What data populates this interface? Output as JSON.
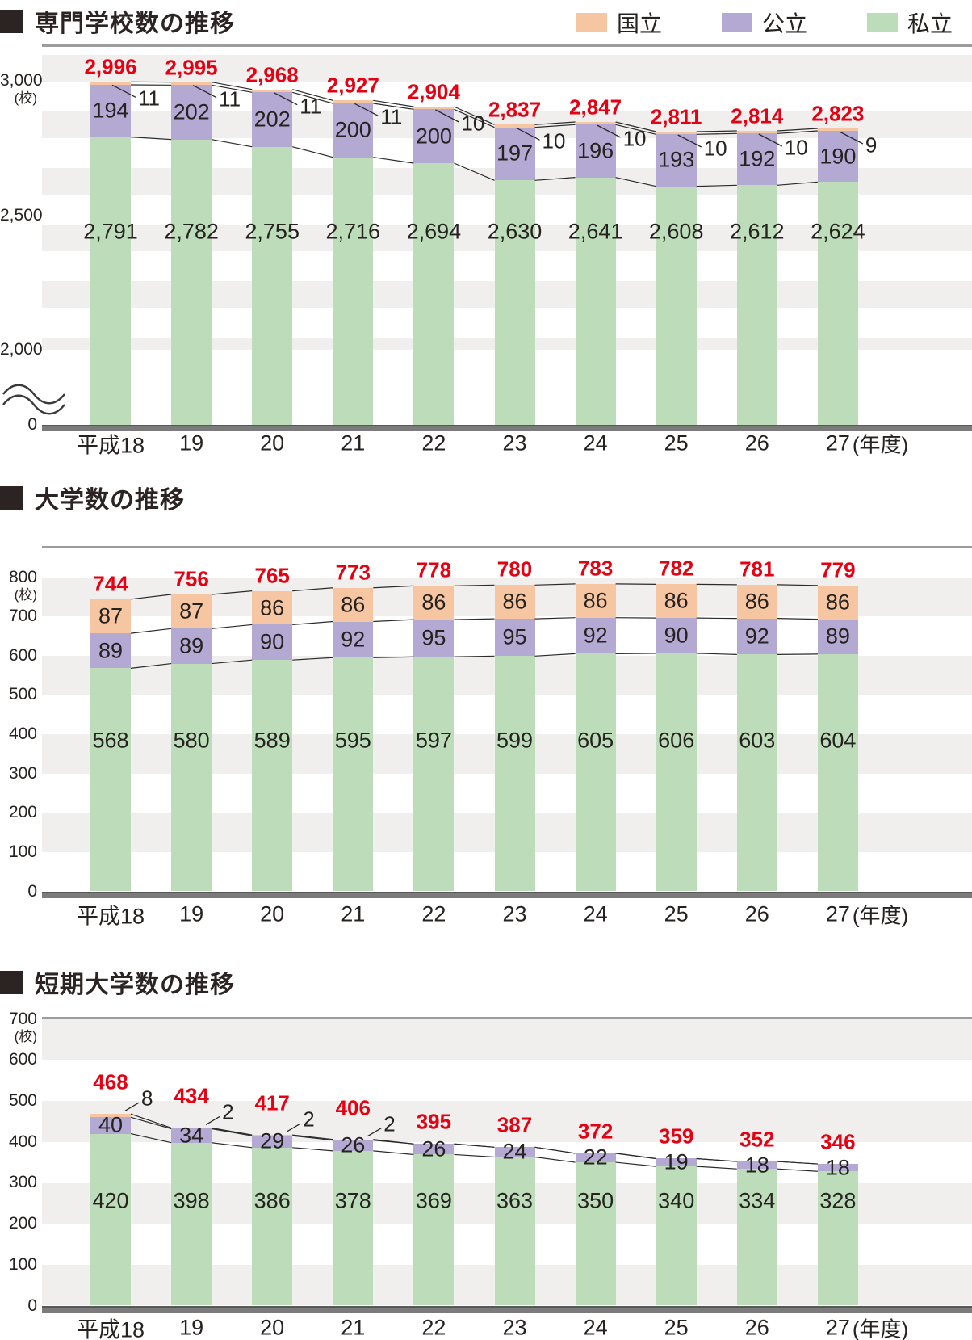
{
  "legend": {
    "items": [
      {
        "label": "国立",
        "key": "national",
        "color": "#f6c6a2"
      },
      {
        "label": "公立",
        "key": "public",
        "color": "#b4a9d2"
      },
      {
        "label": "私立",
        "key": "private",
        "color": "#bcdcba"
      }
    ]
  },
  "colors": {
    "national": "#f6c6a2",
    "public": "#b4a9d2",
    "private": "#bcdcba",
    "total_text": "#e60012",
    "label_text": "#262220",
    "stripe": "#f0efed"
  },
  "chart_data": [
    {
      "type": "bar",
      "stacked": true,
      "title": "専門学校数の推移",
      "unit": "(校)",
      "x_axis_suffix": "(年度)",
      "categories": [
        "平成18",
        "19",
        "20",
        "21",
        "22",
        "23",
        "24",
        "25",
        "26",
        "27"
      ],
      "series": [
        {
          "name": "国立",
          "key": "national",
          "values": [
            11,
            11,
            11,
            11,
            10,
            10,
            10,
            10,
            10,
            9
          ]
        },
        {
          "name": "公立",
          "key": "public",
          "values": [
            194,
            202,
            202,
            200,
            200,
            197,
            196,
            193,
            192,
            190
          ]
        },
        {
          "name": "私立",
          "key": "private",
          "values": [
            2791,
            2782,
            2755,
            2716,
            2694,
            2630,
            2641,
            2608,
            2612,
            2624
          ]
        }
      ],
      "totals": [
        2996,
        2995,
        2968,
        2927,
        2904,
        2837,
        2847,
        2811,
        2814,
        2823
      ],
      "y_ticks": [
        {
          "label": "3,000",
          "value": 3000
        },
        {
          "label": "2,500",
          "value": 2500
        },
        {
          "label": "2,000",
          "value": 2000
        },
        {
          "label": "0",
          "value": 0
        }
      ],
      "ylim": [
        0,
        3000
      ],
      "axis_break": true,
      "legend_position": "top-right",
      "grid": "striped-bands"
    },
    {
      "type": "bar",
      "stacked": true,
      "title": "大学数の推移",
      "unit": "(校)",
      "x_axis_suffix": "(年度)",
      "categories": [
        "平成18",
        "19",
        "20",
        "21",
        "22",
        "23",
        "24",
        "25",
        "26",
        "27"
      ],
      "series": [
        {
          "name": "国立",
          "key": "national",
          "values": [
            87,
            87,
            86,
            86,
            86,
            86,
            86,
            86,
            86,
            86
          ]
        },
        {
          "name": "公立",
          "key": "public",
          "values": [
            89,
            89,
            90,
            92,
            95,
            95,
            92,
            90,
            92,
            89
          ]
        },
        {
          "name": "私立",
          "key": "private",
          "values": [
            568,
            580,
            589,
            595,
            597,
            599,
            605,
            606,
            603,
            604
          ]
        }
      ],
      "totals": [
        744,
        756,
        765,
        773,
        778,
        780,
        783,
        782,
        781,
        779
      ],
      "y_ticks": [
        {
          "label": "800",
          "value": 800
        },
        {
          "label": "700",
          "value": 700
        },
        {
          "label": "600",
          "value": 600
        },
        {
          "label": "500",
          "value": 500
        },
        {
          "label": "400",
          "value": 400
        },
        {
          "label": "300",
          "value": 300
        },
        {
          "label": "200",
          "value": 200
        },
        {
          "label": "100",
          "value": 100
        },
        {
          "label": "0",
          "value": 0
        }
      ],
      "ylim": [
        0,
        800
      ],
      "axis_break": false,
      "grid": "striped-bands"
    },
    {
      "type": "bar",
      "stacked": true,
      "title": "短期大学数の推移",
      "unit": "(校)",
      "x_axis_suffix": "(年度)",
      "categories": [
        "平成18",
        "19",
        "20",
        "21",
        "22",
        "23",
        "24",
        "25",
        "26",
        "27"
      ],
      "series": [
        {
          "name": "国立",
          "key": "national",
          "values": [
            8,
            2,
            2,
            2,
            0,
            0,
            0,
            0,
            0,
            0
          ]
        },
        {
          "name": "公立",
          "key": "public",
          "values": [
            40,
            34,
            29,
            26,
            26,
            24,
            22,
            19,
            18,
            18
          ]
        },
        {
          "name": "私立",
          "key": "private",
          "values": [
            420,
            398,
            386,
            378,
            369,
            363,
            350,
            340,
            334,
            328
          ]
        }
      ],
      "totals": [
        468,
        434,
        417,
        406,
        395,
        387,
        372,
        359,
        352,
        346
      ],
      "y_ticks": [
        {
          "label": "700",
          "value": 700
        },
        {
          "label": "600",
          "value": 600
        },
        {
          "label": "500",
          "value": 500
        },
        {
          "label": "400",
          "value": 400
        },
        {
          "label": "300",
          "value": 300
        },
        {
          "label": "200",
          "value": 200
        },
        {
          "label": "100",
          "value": 100
        },
        {
          "label": "0",
          "value": 0
        }
      ],
      "ylim": [
        0,
        700
      ],
      "axis_break": false,
      "grid": "striped-bands"
    }
  ]
}
